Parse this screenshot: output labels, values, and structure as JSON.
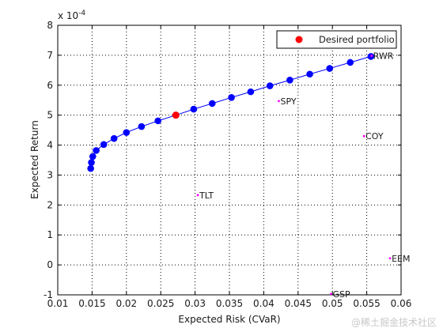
{
  "chart_data": {
    "type": "scatter",
    "xlabel": "Expected Risk (CVaR)",
    "ylabel": "Expected Return",
    "y_scale_label": "x 10",
    "y_scale_exponent": "-4",
    "xlim": [
      0.01,
      0.06
    ],
    "ylim": [
      -1,
      8
    ],
    "x_ticks": [
      0.01,
      0.015,
      0.02,
      0.025,
      0.03,
      0.035,
      0.04,
      0.045,
      0.05,
      0.055,
      0.06
    ],
    "x_tick_labels": [
      "0.01",
      "0.015",
      "0.02",
      "0.025",
      "0.03",
      "0.035",
      "0.04",
      "0.045",
      "0.05",
      "0.055",
      "0.06"
    ],
    "y_ticks": [
      -1,
      0,
      1,
      2,
      3,
      4,
      5,
      6,
      7,
      8
    ],
    "y_tick_labels": [
      "-1",
      "0",
      "1",
      "2",
      "3",
      "4",
      "5",
      "6",
      "7",
      "8"
    ],
    "grid": true,
    "legend_position": "top-right",
    "frontier": {
      "color": "#0000ff",
      "points": [
        {
          "x": 0.0148,
          "y": 3.22
        },
        {
          "x": 0.0149,
          "y": 3.42
        },
        {
          "x": 0.0151,
          "y": 3.62
        },
        {
          "x": 0.0156,
          "y": 3.82
        },
        {
          "x": 0.0167,
          "y": 4.02
        },
        {
          "x": 0.0182,
          "y": 4.22
        },
        {
          "x": 0.02,
          "y": 4.42
        },
        {
          "x": 0.0222,
          "y": 4.62
        },
        {
          "x": 0.0246,
          "y": 4.81
        },
        {
          "x": 0.0272,
          "y": 5.0
        },
        {
          "x": 0.0298,
          "y": 5.2
        },
        {
          "x": 0.0325,
          "y": 5.39
        },
        {
          "x": 0.0353,
          "y": 5.59
        },
        {
          "x": 0.0381,
          "y": 5.78
        },
        {
          "x": 0.0409,
          "y": 5.98
        },
        {
          "x": 0.0438,
          "y": 6.17
        },
        {
          "x": 0.0467,
          "y": 6.37
        },
        {
          "x": 0.0496,
          "y": 6.56
        },
        {
          "x": 0.0526,
          "y": 6.76
        },
        {
          "x": 0.0556,
          "y": 6.96
        }
      ]
    },
    "desired": {
      "name": "Desired portfolio",
      "x": 0.0272,
      "y": 5.0,
      "color": "#ff0000"
    },
    "assets": [
      {
        "label": "RWR",
        "x": 0.0557,
        "y": 6.98
      },
      {
        "label": "SPY",
        "x": 0.0422,
        "y": 5.47
      },
      {
        "label": "COY",
        "x": 0.0546,
        "y": 4.3
      },
      {
        "label": "TLT",
        "x": 0.0304,
        "y": 2.33
      },
      {
        "label": "EEM",
        "x": 0.0584,
        "y": 0.22
      },
      {
        "label": "GSP",
        "x": 0.0498,
        "y": -0.97
      }
    ],
    "asset_color": "#ff00ff"
  },
  "watermark": "@稀土掘金技术社区"
}
